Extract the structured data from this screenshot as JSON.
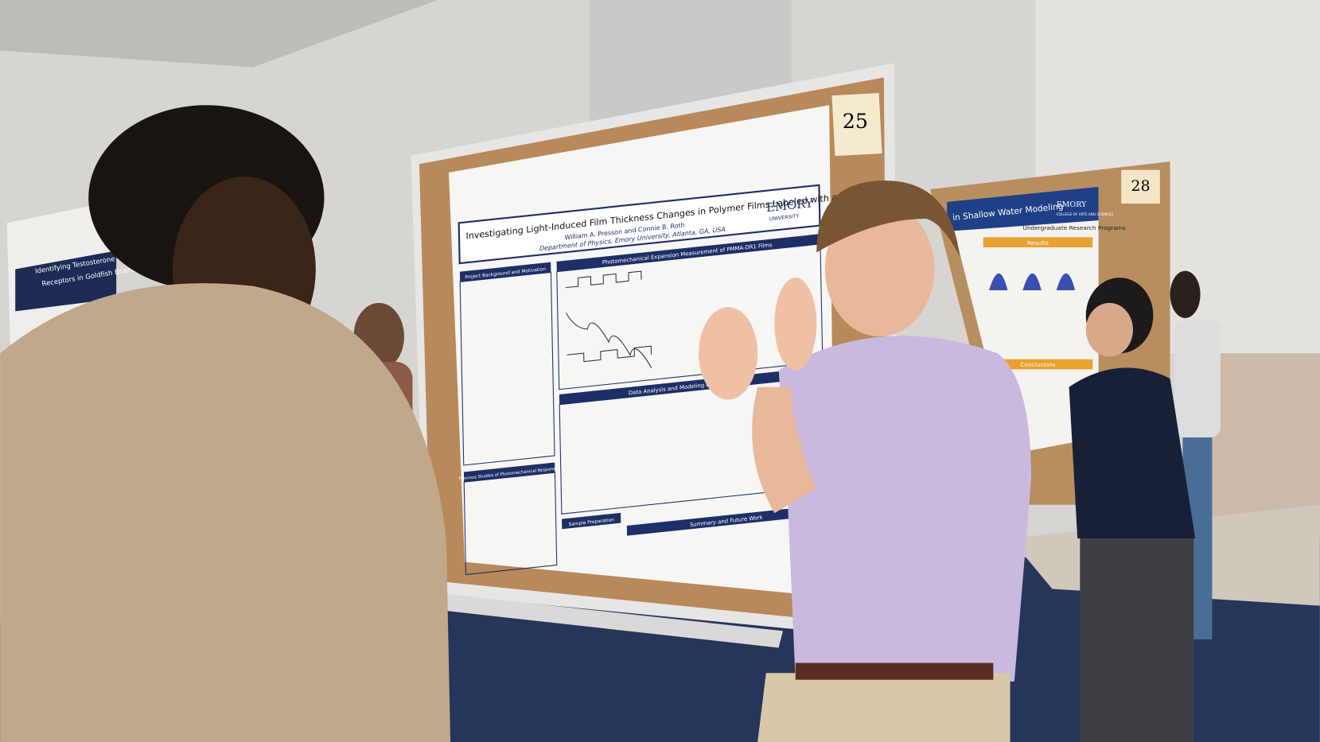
{
  "poster_numbers": [
    "25",
    "28"
  ],
  "main_poster": {
    "title": "Investigating Light-Induced Film Thickness Changes in Polymer Films Labeled with an Azo Dye",
    "authors": "William A. Presson and Connie B. Roth",
    "affiliation": "Department of Physics, Emory University, Atlanta, GA, USA",
    "logo": "EMORY",
    "logo_sub": "UNIVERSITY",
    "sections": [
      "Project Background and Motivation",
      "Photomechanical Expansion Measurement of PMMA-DR1 Films",
      "Data Analysis and Modeling of Polymer Visco",
      "Previous Studies of Photomechanical Responses",
      "Sample Preparation",
      "Summary and Future Work"
    ]
  },
  "right_poster": {
    "title": "in Shallow Water Modeling",
    "logo": "EMORY",
    "logo_sub": "COLLEGE OF ARTS AND SCIENCES",
    "program": "Undergraduate Research Programs",
    "sections": [
      "Results",
      "Conclusions"
    ]
  },
  "left_poster": {
    "title_line1": "Identifying Testosterone Binding Androgen Me",
    "title_line2": "Receptors in Goldfish Brains"
  }
}
